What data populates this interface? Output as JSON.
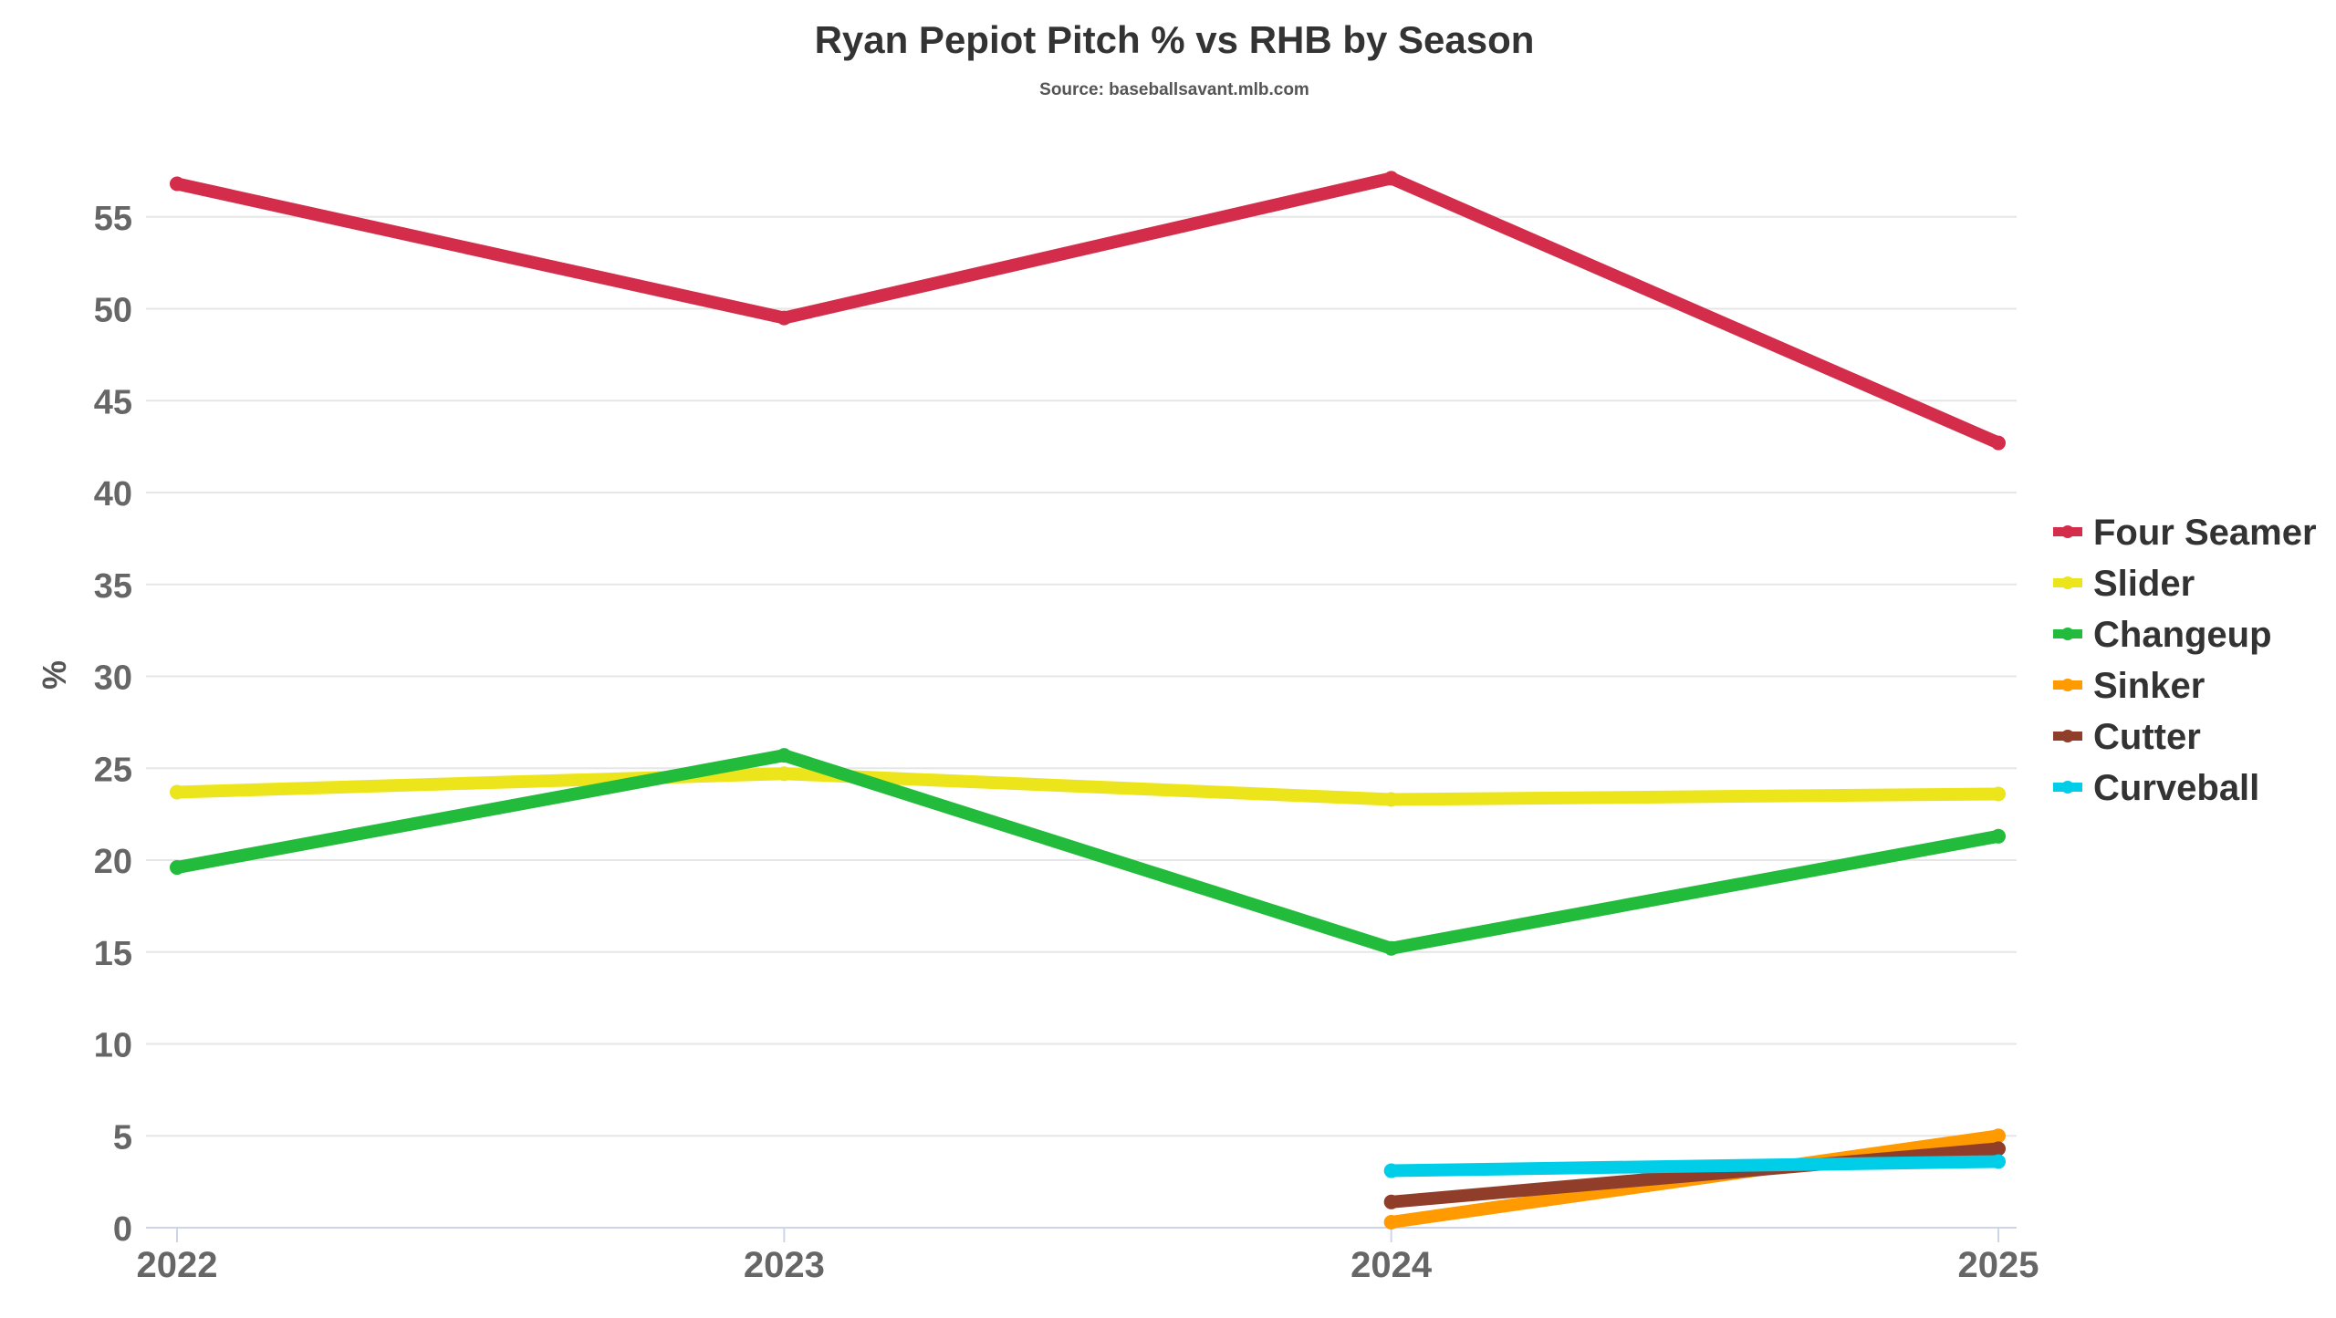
{
  "chart_data": {
    "type": "line",
    "title": "Ryan Pepiot Pitch % vs RHB by Season",
    "subtitle": "Source: baseballsavant.mlb.com",
    "xlabel": "",
    "ylabel": "%",
    "x": [
      "2022",
      "2023",
      "2024",
      "2025"
    ],
    "ylim": [
      0,
      57.5
    ],
    "yticks": [
      0,
      5,
      10,
      15,
      20,
      25,
      30,
      35,
      40,
      45,
      50,
      55
    ],
    "grid": true,
    "legend_position": "right",
    "series": [
      {
        "name": "Four Seamer",
        "color": "#d42d4b",
        "values": [
          56.8,
          49.5,
          57.1,
          42.7
        ]
      },
      {
        "name": "Slider",
        "color": "#ece51c",
        "values": [
          23.7,
          24.7,
          23.3,
          23.6
        ]
      },
      {
        "name": "Changeup",
        "color": "#22bb3c",
        "values": [
          19.6,
          25.7,
          15.2,
          21.3
        ]
      },
      {
        "name": "Sinker",
        "color": "#ff9a00",
        "values": [
          null,
          null,
          0.3,
          5.0
        ]
      },
      {
        "name": "Cutter",
        "color": "#903d2a",
        "values": [
          null,
          null,
          1.4,
          4.3
        ]
      },
      {
        "name": "Curveball",
        "color": "#00cde8",
        "values": [
          null,
          null,
          3.1,
          3.6
        ]
      }
    ]
  }
}
